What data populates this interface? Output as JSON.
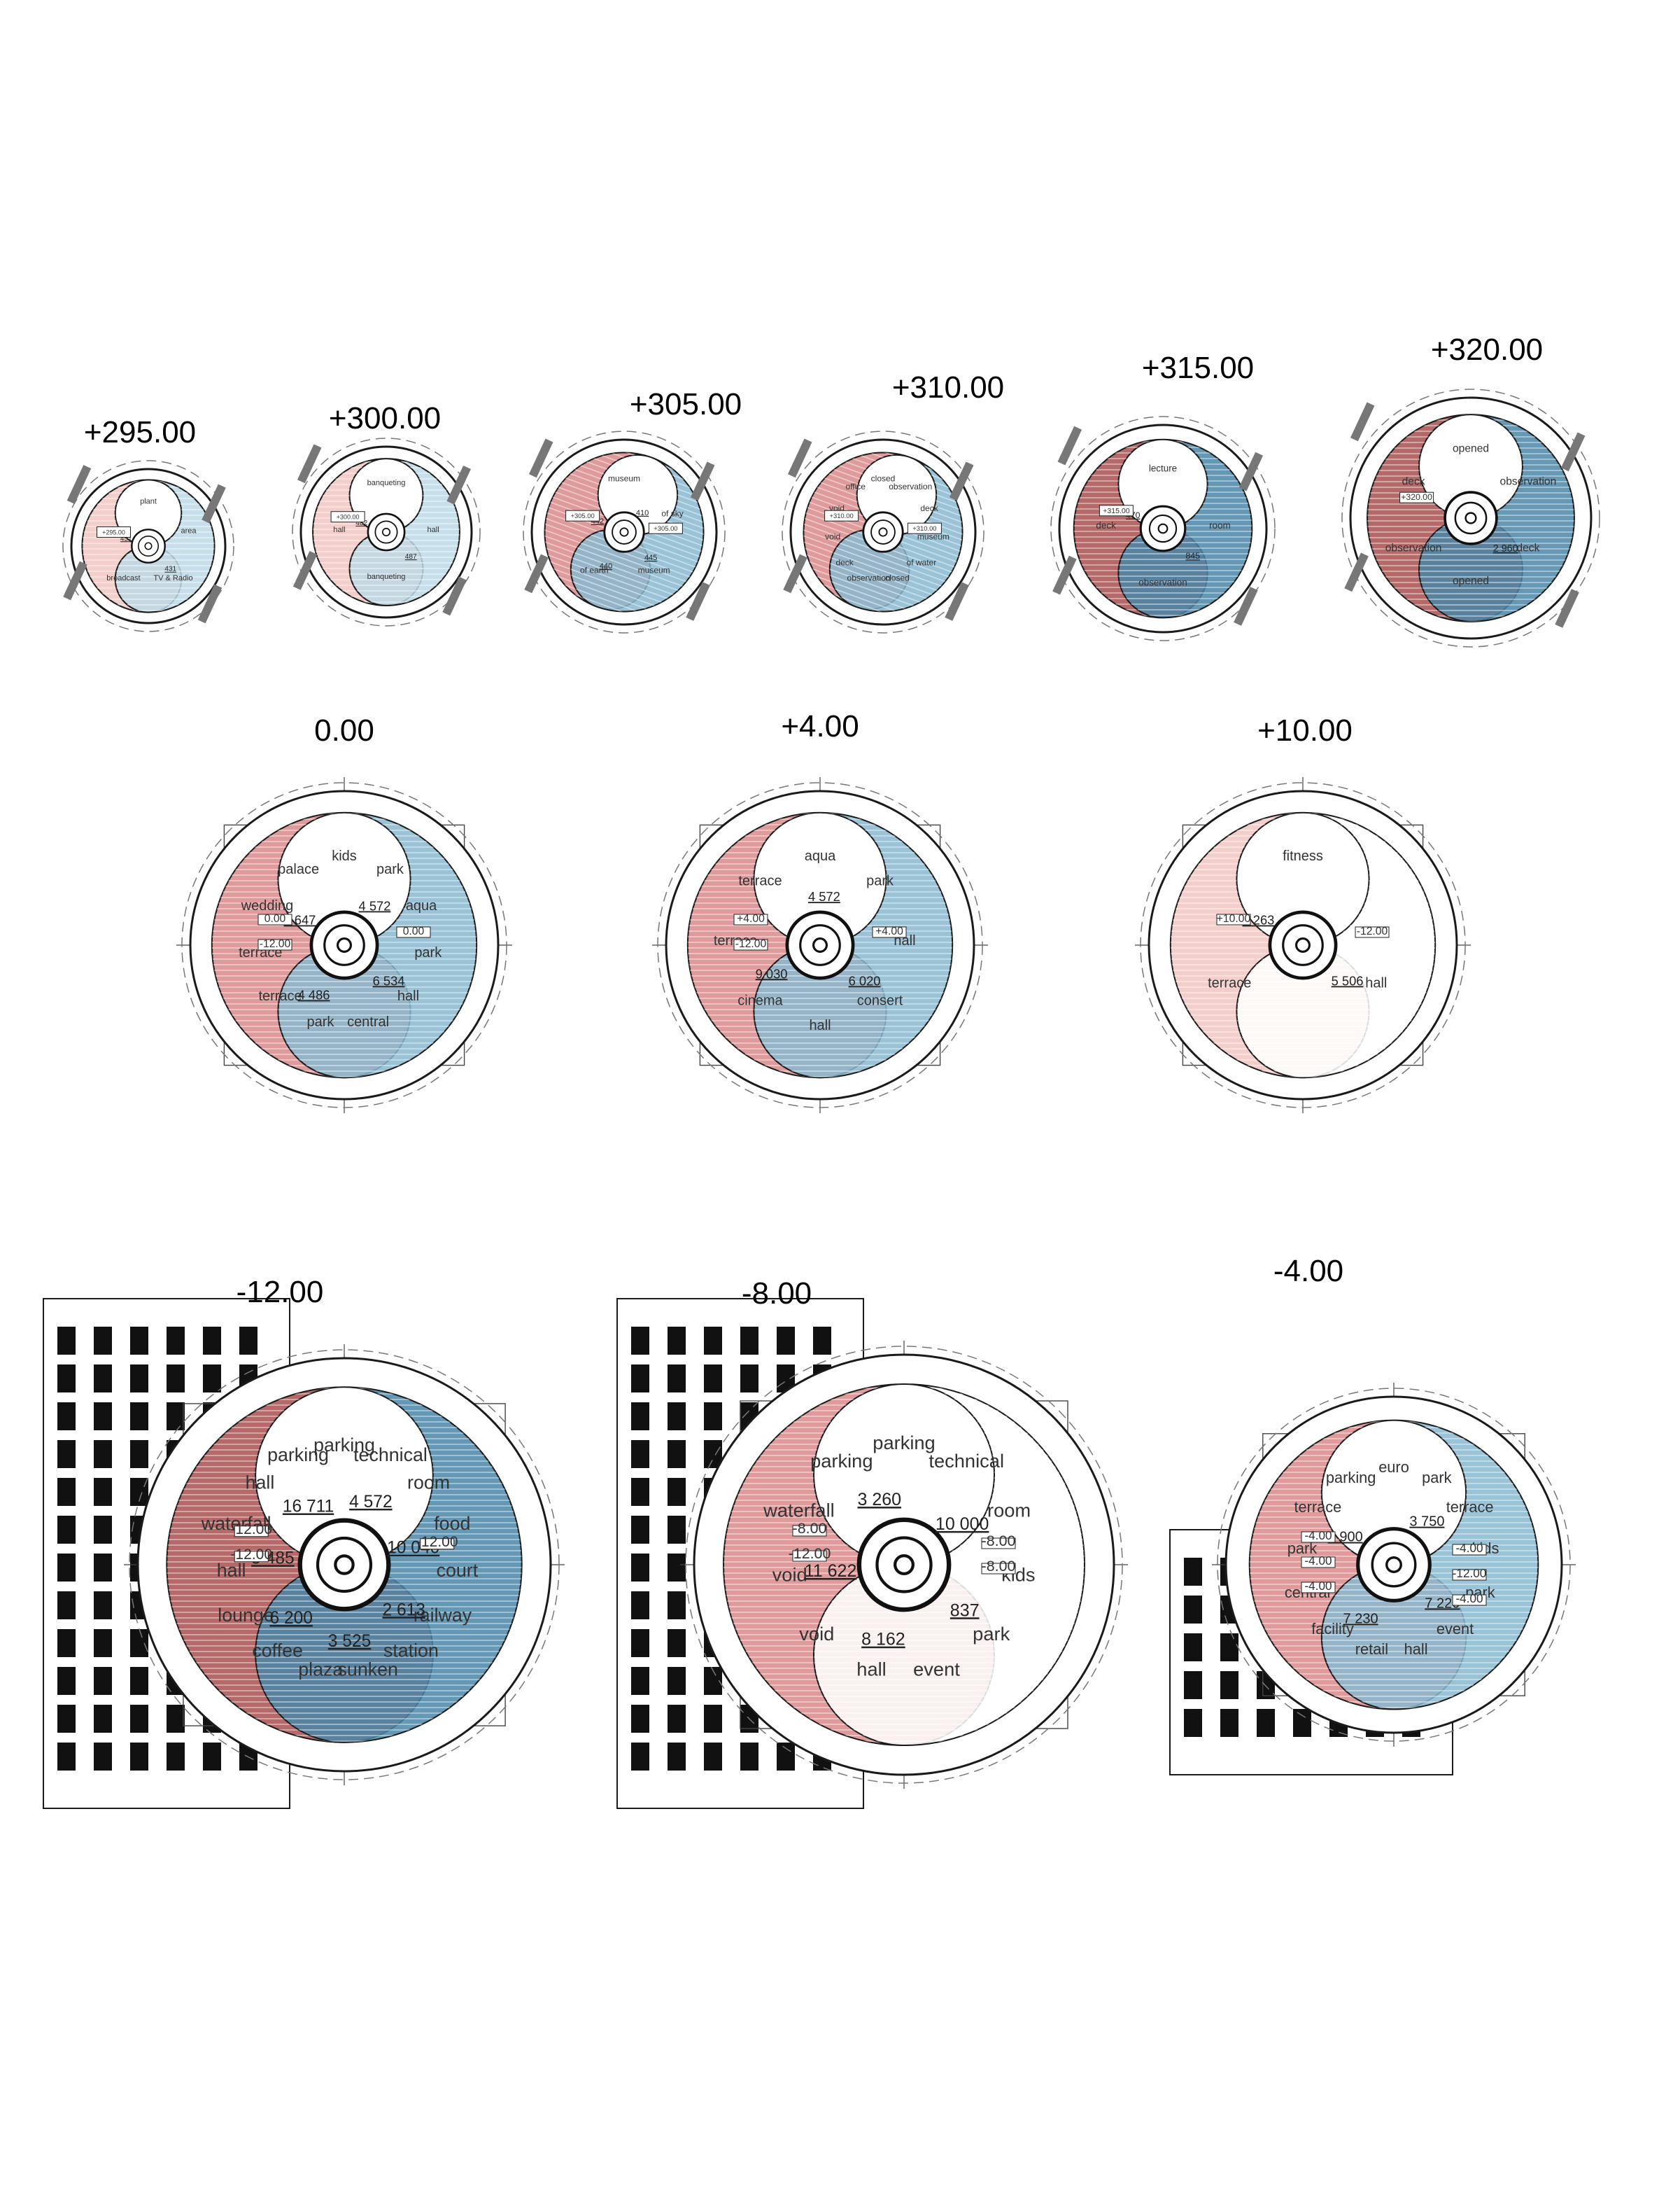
{
  "colors": {
    "red": "#d98a8a",
    "red_dark": "#a8504f",
    "blue": "#8ab9d0",
    "blue_dark": "#4a86a8",
    "pink": "#f2c6c1",
    "lightblue": "#bcd9e6",
    "line": "#1a1a1a",
    "grey": "#555555"
  },
  "plans": [
    {
      "level": "+295.00",
      "labels": [
        "plant",
        "area",
        "TV & Radio",
        "broadcast",
        "area"
      ],
      "numbers": [
        "431",
        "451"
      ],
      "tags": [
        "+295.00"
      ]
    },
    {
      "level": "+300.00",
      "labels": [
        "banqueting",
        "hall",
        "banqueting",
        "hall"
      ],
      "numbers": [
        "487",
        "482"
      ],
      "tags": [
        "+300.00"
      ]
    },
    {
      "level": "+305.00",
      "labels": [
        "museum",
        "of sky",
        "museum",
        "of earth",
        "kafe"
      ],
      "numbers": [
        "445",
        "440",
        "442",
        "410"
      ],
      "tags": [
        "+305.00",
        "+305.00"
      ]
    },
    {
      "level": "+310.00",
      "labels": [
        "closed",
        "observation",
        "deck",
        "museum",
        "of water",
        "closed",
        "observation",
        "deck",
        "void",
        "void",
        "office"
      ],
      "numbers": [],
      "tags": [
        "+310.00",
        "+310.00"
      ]
    },
    {
      "level": "+315.00",
      "labels": [
        "lecture",
        "room",
        "observation",
        "deck"
      ],
      "numbers": [
        "845",
        "470"
      ],
      "tags": [
        "+315.00"
      ]
    },
    {
      "level": "+320.00",
      "labels": [
        "opened",
        "observation",
        "deck",
        "opened",
        "observation",
        "deck"
      ],
      "numbers": [
        "2 960"
      ],
      "tags": [
        "+320.00"
      ]
    },
    {
      "level": "0.00",
      "labels": [
        "kids",
        "park",
        "aqua",
        "park",
        "hall",
        "central",
        "park",
        "terrace",
        "terrace",
        "wedding",
        "palace"
      ],
      "numbers": [
        "6 534",
        "4 486",
        "1 647",
        "4 572"
      ],
      "tags": [
        "0.00",
        "0.00",
        "-12.00"
      ]
    },
    {
      "level": "+4.00",
      "labels": [
        "aqua",
        "park",
        "hall",
        "consert",
        "hall",
        "cinema",
        "terrace",
        "terrace"
      ],
      "numbers": [
        "6 020",
        "9 030",
        "4 572"
      ],
      "tags": [
        "+4.00",
        "+4.00",
        "-12.00"
      ]
    },
    {
      "level": "+10.00",
      "labels": [
        "fitness",
        "hall",
        "terrace"
      ],
      "numbers": [
        "5 506",
        "3 263"
      ],
      "tags": [
        "+10.00",
        "-12.00"
      ]
    },
    {
      "level": "-12.00",
      "labels": [
        "parking",
        "technical",
        "room",
        "food",
        "court",
        "railway",
        "station",
        "sunken",
        "plaza",
        "coffee",
        "lounge",
        "hall",
        "waterfall",
        "hall",
        "parking"
      ],
      "numbers": [
        "2 613",
        "3 525",
        "6 200",
        "5 485",
        "16 711",
        "4 572",
        "10 040"
      ],
      "tags": [
        "-12.00",
        "-12.00",
        "-12.00"
      ]
    },
    {
      "level": "-8.00",
      "labels": [
        "parking",
        "technical",
        "room",
        "kids",
        "park",
        "event",
        "hall",
        "void",
        "void",
        "waterfall",
        "parking"
      ],
      "numbers": [
        "837",
        "8 162",
        "11 622",
        "3 260",
        "10 000"
      ],
      "tags": [
        "-8.00",
        "-8.00",
        "-12.00",
        "-8.00"
      ]
    },
    {
      "level": "-4.00",
      "labels": [
        "euro",
        "park",
        "terrace",
        "kids",
        "park",
        "event",
        "hall",
        "retail",
        "facility",
        "central",
        "park",
        "terrace",
        "parking"
      ],
      "numbers": [
        "7 220",
        "7 230",
        "8 900",
        "3 750"
      ],
      "tags": [
        "-4.00",
        "-4.00",
        "-4.00",
        "-12.00",
        "-4.00",
        "-4.00"
      ]
    }
  ]
}
